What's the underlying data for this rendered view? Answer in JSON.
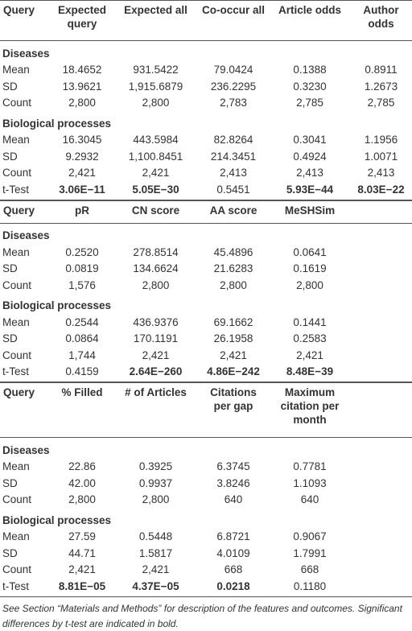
{
  "tables": [
    {
      "header": [
        "Query",
        "Expected query",
        "Expected all",
        "Co-occur all",
        "Article odds",
        "Author odds"
      ],
      "sections": [
        {
          "title": "Diseases",
          "rows": [
            [
              "Mean",
              "18.4652",
              "931.5422",
              "79.0424",
              "0.1388",
              "0.8911"
            ],
            [
              "SD",
              "13.9621",
              "1,915.6879",
              "236.2295",
              "0.3230",
              "1.2673"
            ],
            [
              "Count",
              "2,800",
              "2,800",
              "2,783",
              "2,785",
              "2,785"
            ]
          ]
        },
        {
          "title": "Biological processes",
          "rows": [
            [
              "Mean",
              "16.3045",
              "443.5984",
              "82.8264",
              "0.3041",
              "1.1956"
            ],
            [
              "SD",
              "9.2932",
              "1,100.8451",
              "214.3451",
              "0.4924",
              "1.0071"
            ],
            [
              "Count",
              "2,421",
              "2,421",
              "2,413",
              "2,413",
              "2,413"
            ]
          ]
        }
      ],
      "ttest": {
        "cells": [
          "t-Test",
          "3.06E−11",
          "5.05E−30",
          "0.5451",
          "5.93E−44",
          "8.03E−22"
        ],
        "bold": [
          false,
          true,
          true,
          false,
          true,
          true
        ]
      }
    },
    {
      "header": [
        "Query",
        "pR",
        "CN score",
        "AA score",
        "MeSHSim"
      ],
      "sections": [
        {
          "title": "Diseases",
          "rows": [
            [
              "Mean",
              "0.2520",
              "278.8514",
              "45.4896",
              "0.0641"
            ],
            [
              "SD",
              "0.0819",
              "134.6624",
              "21.6283",
              "0.1619"
            ],
            [
              "Count",
              "1,576",
              "2,800",
              "2,800",
              "2,800"
            ]
          ]
        },
        {
          "title": "Biological processes",
          "rows": [
            [
              "Mean",
              "0.2544",
              "436.9376",
              "69.1662",
              "0.1441"
            ],
            [
              "SD",
              "0.0864",
              "170.1191",
              "26.1958",
              "0.2583"
            ],
            [
              "Count",
              "1,744",
              "2,421",
              "2,421",
              "2,421"
            ]
          ]
        }
      ],
      "ttest": {
        "cells": [
          "t-Test",
          "0.4159",
          "2.64E−260",
          "4.86E−242",
          "8.48E−39"
        ],
        "bold": [
          false,
          false,
          true,
          true,
          true
        ]
      }
    },
    {
      "header": [
        "Query",
        "% Filled",
        "# of Articles",
        "Citations per gap",
        "Maximum citation per month"
      ],
      "sections": [
        {
          "title": "Diseases",
          "rows": [
            [
              "Mean",
              "22.86",
              "0.3925",
              "6.3745",
              "0.7781"
            ],
            [
              "SD",
              "42.00",
              "0.9937",
              "3.8246",
              "1.1093"
            ],
            [
              "Count",
              "2,800",
              "2,800",
              "640",
              "640"
            ]
          ]
        },
        {
          "title": "Biological processes",
          "rows": [
            [
              "Mean",
              "27.59",
              "0.5448",
              "6.8721",
              "0.9067"
            ],
            [
              "SD",
              "44.71",
              "1.5817",
              "4.0109",
              "1.7991"
            ],
            [
              "Count",
              "2,421",
              "2,421",
              "668",
              "668"
            ]
          ]
        }
      ],
      "ttest": {
        "cells": [
          "t-Test",
          "8.81E−05",
          "4.37E−05",
          "0.0218",
          "0.1180"
        ],
        "bold": [
          false,
          true,
          true,
          true,
          false
        ]
      }
    }
  ],
  "footnote": "See Section “Materials and Methods” for description of the features and outcomes. Significant differences by t-test are indicated in bold."
}
